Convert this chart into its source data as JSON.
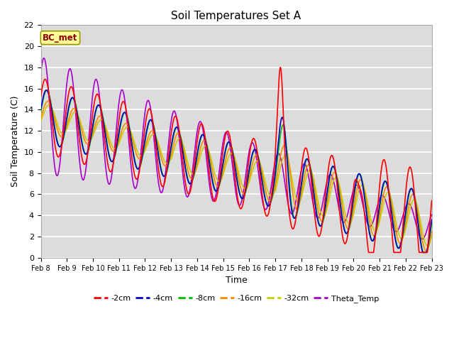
{
  "title": "Soil Temperatures Set A",
  "xlabel": "Time",
  "ylabel": "Soil Temperature (C)",
  "ylim": [
    0,
    22
  ],
  "xlim": [
    0,
    15
  ],
  "xtick_labels": [
    "Feb 8",
    "Feb 9",
    "Feb 10",
    "Feb 11",
    "Feb 12",
    "Feb 13",
    "Feb 14",
    "Feb 15",
    "Feb 16",
    "Feb 17",
    "Feb 18",
    "Feb 19",
    "Feb 20",
    "Feb 21",
    "Feb 22",
    "Feb 23"
  ],
  "annotation": "BC_met",
  "background_color": "#dcdcdc",
  "grid_color": "#ffffff",
  "series": {
    "-2cm": {
      "color": "#ff0000",
      "lw": 1.2
    },
    "-4cm": {
      "color": "#0000cc",
      "lw": 1.2
    },
    "-8cm": {
      "color": "#00bb00",
      "lw": 1.2
    },
    "-16cm": {
      "color": "#ff8800",
      "lw": 1.2
    },
    "-32cm": {
      "color": "#cccc00",
      "lw": 1.2
    },
    "Theta_Temp": {
      "color": "#aa00cc",
      "lw": 1.2
    }
  }
}
